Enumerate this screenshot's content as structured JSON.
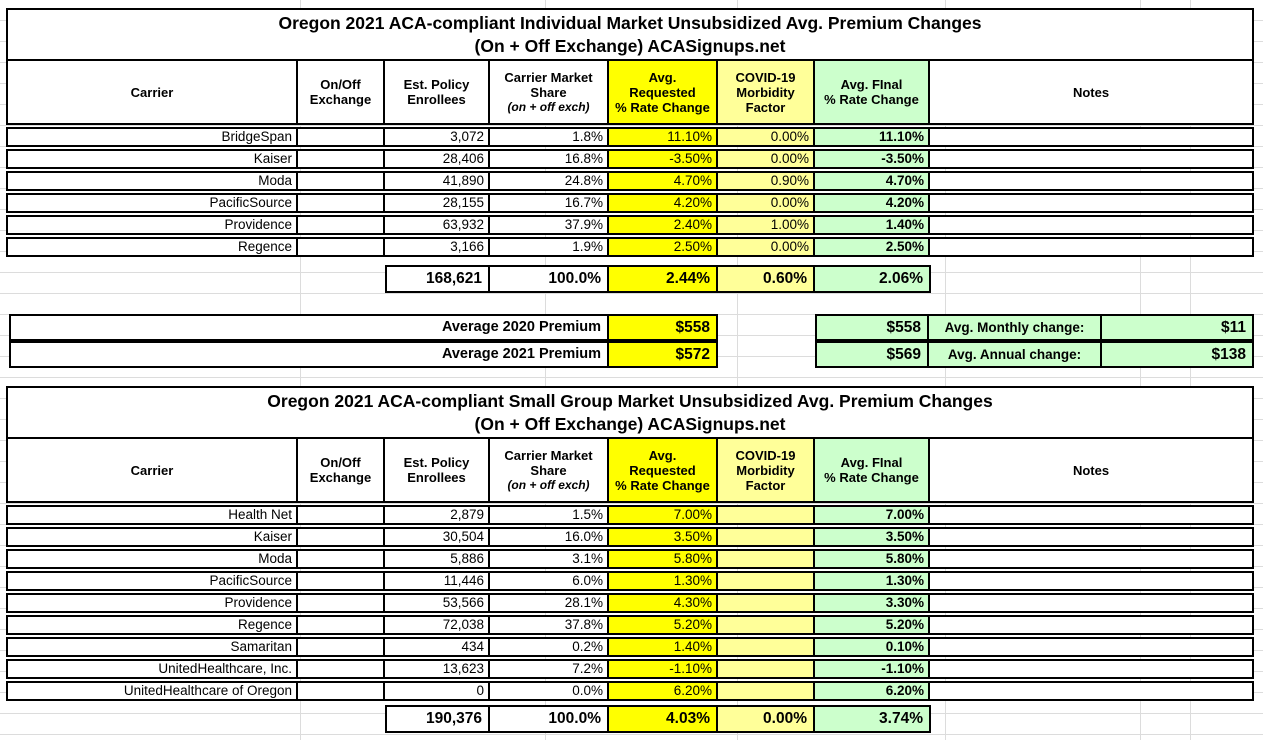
{
  "colors": {
    "requested_bg": "#FFFF00",
    "covid_bg": "#FFFF99",
    "final_bg": "#CCFFCC",
    "border": "#000000",
    "gridline": "#DCDCDC"
  },
  "tables": [
    {
      "title_line1": "Oregon 2021 ACA-compliant Individual Market Unsubsidized Avg. Premium Changes",
      "title_line2": "(On + Off Exchange) ACASignups.net",
      "headers": {
        "carrier": "Carrier",
        "exchange": "On/Off\nExchange",
        "enrollees": "Est. Policy\nEnrollees",
        "share": "Carrier Market\nShare",
        "share_sub": "(on + off exch)",
        "requested": "Avg.\nRequested\n% Rate Change",
        "covid": "COVID-19\nMorbidity\nFactor",
        "final": "Avg. FInal\n% Rate Change",
        "notes": "Notes"
      },
      "rows": [
        {
          "carrier": "BridgeSpan",
          "exchange": "",
          "enrollees": "3,072",
          "share": "1.8%",
          "requested": "11.10%",
          "covid": "0.00%",
          "final": "11.10%",
          "notes": ""
        },
        {
          "carrier": "Kaiser",
          "exchange": "",
          "enrollees": "28,406",
          "share": "16.8%",
          "requested": "-3.50%",
          "covid": "0.00%",
          "final": "-3.50%",
          "notes": ""
        },
        {
          "carrier": "Moda",
          "exchange": "",
          "enrollees": "41,890",
          "share": "24.8%",
          "requested": "4.70%",
          "covid": "0.90%",
          "final": "4.70%",
          "notes": ""
        },
        {
          "carrier": "PacificSource",
          "exchange": "",
          "enrollees": "28,155",
          "share": "16.7%",
          "requested": "4.20%",
          "covid": "0.00%",
          "final": "4.20%",
          "notes": ""
        },
        {
          "carrier": "Providence",
          "exchange": "",
          "enrollees": "63,932",
          "share": "37.9%",
          "requested": "2.40%",
          "covid": "1.00%",
          "final": "1.40%",
          "notes": ""
        },
        {
          "carrier": "Regence",
          "exchange": "",
          "enrollees": "3,166",
          "share": "1.9%",
          "requested": "2.50%",
          "covid": "0.00%",
          "final": "2.50%",
          "notes": ""
        }
      ],
      "totals": {
        "enrollees": "168,621",
        "share": "100.0%",
        "requested": "2.44%",
        "covid": "0.60%",
        "final": "2.06%"
      }
    },
    {
      "title_line1": "Oregon 2021 ACA-compliant Small Group Market Unsubsidized Avg. Premium Changes",
      "title_line2": "(On + Off Exchange) ACASignups.net",
      "headers": {
        "carrier": "Carrier",
        "exchange": "On/Off\nExchange",
        "enrollees": "Est. Policy\nEnrollees",
        "share": "Carrier Market\nShare",
        "share_sub": "(on + off exch)",
        "requested": "Avg.\nRequested\n% Rate Change",
        "covid": "COVID-19\nMorbidity\nFactor",
        "final": "Avg. FInal\n% Rate Change",
        "notes": "Notes"
      },
      "rows": [
        {
          "carrier": "Health Net",
          "exchange": "",
          "enrollees": "2,879",
          "share": "1.5%",
          "requested": "7.00%",
          "covid": "",
          "final": "7.00%",
          "notes": ""
        },
        {
          "carrier": "Kaiser",
          "exchange": "",
          "enrollees": "30,504",
          "share": "16.0%",
          "requested": "3.50%",
          "covid": "",
          "final": "3.50%",
          "notes": ""
        },
        {
          "carrier": "Moda",
          "exchange": "",
          "enrollees": "5,886",
          "share": "3.1%",
          "requested": "5.80%",
          "covid": "",
          "final": "5.80%",
          "notes": ""
        },
        {
          "carrier": "PacificSource",
          "exchange": "",
          "enrollees": "11,446",
          "share": "6.0%",
          "requested": "1.30%",
          "covid": "",
          "final": "1.30%",
          "notes": ""
        },
        {
          "carrier": "Providence",
          "exchange": "",
          "enrollees": "53,566",
          "share": "28.1%",
          "requested": "4.30%",
          "covid": "",
          "final": "3.30%",
          "notes": ""
        },
        {
          "carrier": "Regence",
          "exchange": "",
          "enrollees": "72,038",
          "share": "37.8%",
          "requested": "5.20%",
          "covid": "",
          "final": "5.20%",
          "notes": ""
        },
        {
          "carrier": "Samaritan",
          "exchange": "",
          "enrollees": "434",
          "share": "0.2%",
          "requested": "1.40%",
          "covid": "",
          "final": "0.10%",
          "notes": ""
        },
        {
          "carrier": "UnitedHealthcare, Inc.",
          "exchange": "",
          "enrollees": "13,623",
          "share": "7.2%",
          "requested": "-1.10%",
          "covid": "",
          "final": "-1.10%",
          "notes": ""
        },
        {
          "carrier": "UnitedHealthcare of Oregon",
          "exchange": "",
          "enrollees": "0",
          "share": "0.0%",
          "requested": "6.20%",
          "covid": "",
          "final": "6.20%",
          "notes": ""
        }
      ],
      "totals": {
        "enrollees": "190,376",
        "share": "100.0%",
        "requested": "4.03%",
        "covid": "0.00%",
        "final": "3.74%"
      }
    }
  ],
  "premium_summary": {
    "rows": [
      {
        "label": "Average 2020 Premium",
        "requested_value": "$558",
        "final_value": "$558",
        "change_label": "Avg. Monthly change:",
        "change_value": "$11"
      },
      {
        "label": "Average 2021 Premium",
        "requested_value": "$572",
        "final_value": "$569",
        "change_label": "Avg. Annual change:",
        "change_value": "$138"
      }
    ]
  }
}
